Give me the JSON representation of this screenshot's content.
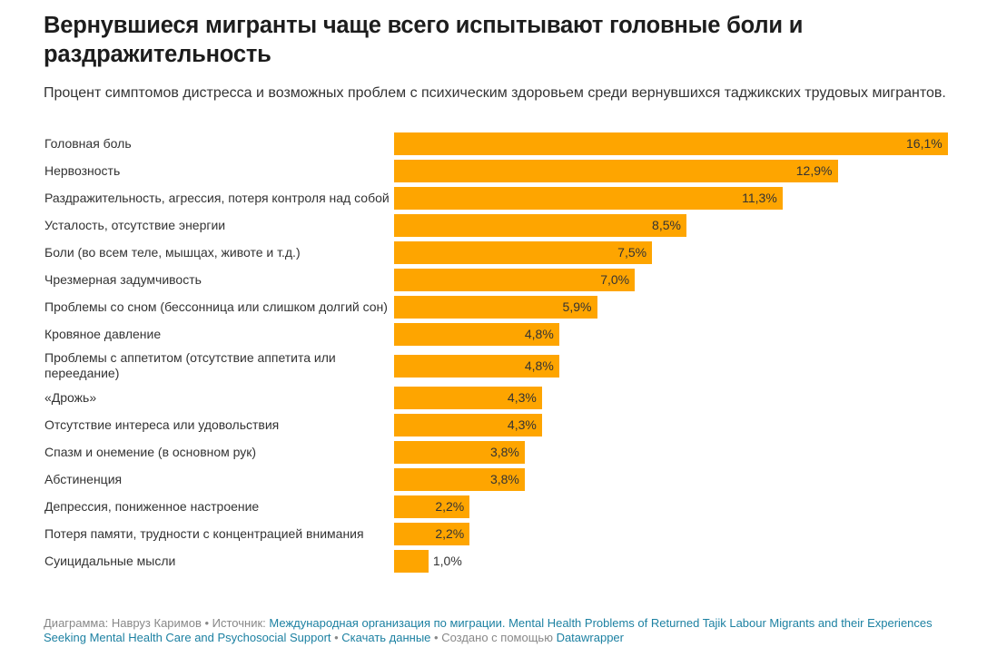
{
  "header": {
    "title": "Вернувшиеся мигранты чаще всего испытывают головные боли и раздражительность",
    "subtitle": "Процент симптомов дистресса и возможных проблем с психическим здоровьем среди вернувшихся таджикских трудовых мигрантов."
  },
  "colors": {
    "bar": "#fea500",
    "text": "#333333",
    "link": "#1d81a2",
    "muted": "#888888"
  },
  "chart_data": {
    "type": "bar",
    "orientation": "horizontal",
    "title": "Вернувшиеся мигранты чаще всего испытывают головные боли и раздражительность",
    "subtitle": "Процент симптомов дистресса и возможных проблем с психическим здоровьем среди вернувшихся таджикских трудовых мигрантов.",
    "xlabel": "",
    "ylabel": "",
    "unit": "%",
    "grid": false,
    "xlim": [
      0,
      16.1
    ],
    "categories": [
      "Головная боль",
      "Нервозность",
      "Раздражительность, агрессия, потеря контроля над собой",
      "Усталость, отсутствие энергии",
      "Боли (во всем теле, мышцах, животе и т.д.)",
      "Чрезмерная задумчивость",
      "Проблемы со сном (бессонница или слишком долгий сон)",
      "Кровяное давление",
      "Проблемы с аппетитом (отсутствие аппетита или переедание)",
      "«Дрожь»",
      "Отсутствие интереса или удовольствия",
      "Спазм и онемение (в основном рук)",
      "Абстиненция",
      "Депрессия, пониженное настроение",
      "Потеря памяти, трудности с концентрацией внимания",
      "Суицидальные мысли"
    ],
    "values": [
      16.1,
      12.9,
      11.3,
      8.5,
      7.5,
      7.0,
      5.9,
      4.8,
      4.8,
      4.3,
      4.3,
      3.8,
      3.8,
      2.2,
      2.2,
      1.0
    ],
    "value_labels": [
      "16,1%",
      "12,9%",
      "11,3%",
      "8,5%",
      "7,5%",
      "7,0%",
      "5,9%",
      "4,8%",
      "4,8%",
      "4,3%",
      "4,3%",
      "3,8%",
      "3,8%",
      "2,2%",
      "2,2%",
      "1,0%"
    ]
  },
  "footer": {
    "chart_by_prefix": "Диаграмма: Навруз Каримов",
    "separator": " • ",
    "source_prefix": "Источник: ",
    "source_link": "Международная организация по миграции. Mental Health Problems of Returned Tajik Labour Migrants and their Experiences Seeking Mental Health Care and Psychosocial Support",
    "download_link": "Скачать данные",
    "created_with_prefix": "Создано с помощью ",
    "created_with_link": "Datawrapper"
  }
}
